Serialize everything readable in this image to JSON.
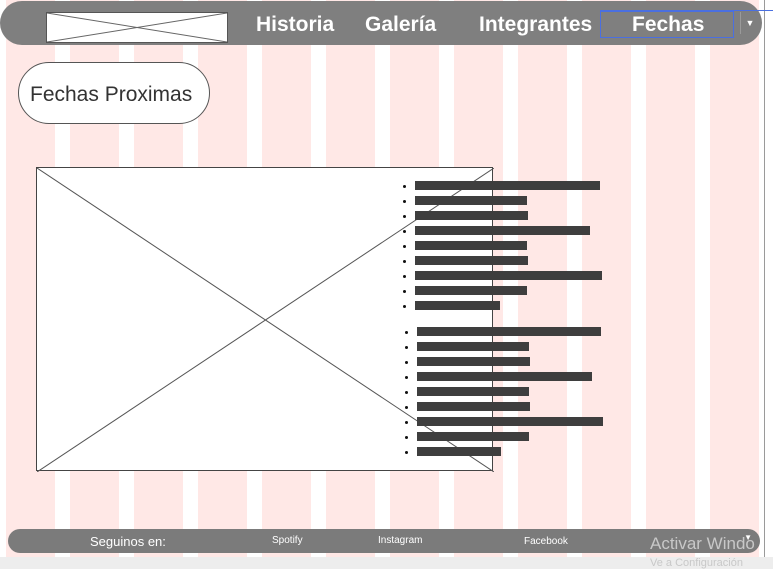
{
  "header": {
    "logo_alt": "logo placeholder",
    "nav": [
      {
        "label": "Historia"
      },
      {
        "label": "Galería"
      },
      {
        "label": "Integrantes"
      },
      {
        "label": "Fechas"
      }
    ],
    "dropdown_icon": "caret-down-icon"
  },
  "section": {
    "title": "Fechas Proximas"
  },
  "image_placeholder": {
    "icon": "image-placeholder-icon"
  },
  "lists": [
    {
      "items": 9
    },
    {
      "items": 9
    }
  ],
  "footer": {
    "follow_label": "Seguinos en:",
    "links": [
      {
        "label": "Spotify"
      },
      {
        "label": "Instagram"
      },
      {
        "label": "Facebook"
      }
    ]
  },
  "watermark": {
    "line1": "Activar Windo",
    "line2": "Ve a Configuración"
  },
  "colors": {
    "header_bg": "#7f7f7f",
    "grid_pink": "#ffe8e6",
    "bar": "#3e3e3e",
    "selection_blue": "#4a6fe0"
  }
}
